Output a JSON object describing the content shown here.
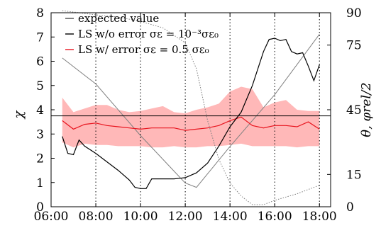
{
  "chart_data": {
    "type": "line",
    "xlabel": "",
    "ylabel_left": "χ",
    "ylabel_right": "θ, φrel/2",
    "x_ticks": [
      "06:00",
      "08:00",
      "10:00",
      "12:00",
      "14:00",
      "16:00",
      "18:00"
    ],
    "x_tick_hours": [
      6,
      8,
      10,
      12,
      14,
      16,
      18
    ],
    "xlim": [
      6,
      18.5
    ],
    "ylim_left": [
      0,
      8
    ],
    "yticks_left": [
      "0",
      "1",
      "2",
      "3",
      "4",
      "5",
      "6",
      "7",
      "8"
    ],
    "ylim_right": [
      0,
      90
    ],
    "yticks_right": [
      "0",
      "15",
      "45",
      "75",
      "90"
    ],
    "yticks_right_values": [
      0,
      15,
      45,
      75,
      90
    ],
    "vertical_gridlines_hours": [
      8,
      10,
      12,
      14,
      16,
      18
    ],
    "legend_position": "top-left",
    "colors": {
      "expected": "#000000",
      "ls_without_error": "#000000",
      "ls_with_error": "#e8141e",
      "error_band": "#ffb8b8",
      "angle_solid": "#808080",
      "angle_dotted": "#808080"
    },
    "legend": [
      {
        "key": "expected",
        "label": "expected value"
      },
      {
        "key": "ls_without_error",
        "label": "LS w/o error σε = 10⁻³σε₀"
      },
      {
        "key": "ls_with_error",
        "label": "LS w/ error σε = 0.5 σε₀"
      }
    ],
    "series": [
      {
        "name": "expected value",
        "axis": "left",
        "style": "thin",
        "x": [
          6,
          18.5
        ],
        "y": [
          3.75,
          3.75
        ]
      },
      {
        "name": "LS w/o error σε = 10⁻³σε₀",
        "axis": "left",
        "style": "solid",
        "x": [
          6.5,
          6.75,
          7.0,
          7.25,
          7.5,
          8.0,
          8.5,
          9.0,
          9.5,
          9.75,
          10.0,
          10.25,
          10.5,
          11.0,
          11.5,
          12.0,
          12.5,
          13.0,
          13.5,
          14.0,
          14.5,
          15.0,
          15.5,
          15.75,
          16.0,
          16.25,
          16.5,
          16.75,
          17.0,
          17.25,
          17.5,
          17.75,
          18.0
        ],
        "y": [
          2.9,
          2.2,
          2.15,
          2.75,
          2.5,
          2.2,
          1.85,
          1.5,
          1.1,
          0.8,
          0.75,
          0.75,
          1.15,
          1.15,
          1.15,
          1.2,
          1.4,
          1.8,
          2.5,
          3.3,
          3.9,
          5.0,
          6.4,
          6.9,
          6.95,
          6.85,
          6.9,
          6.4,
          6.3,
          6.35,
          5.8,
          5.2,
          5.85
        ]
      },
      {
        "name": "LS w/ error σε = 0.5 σε₀",
        "axis": "left",
        "style": "solid",
        "x": [
          6.5,
          7.0,
          7.5,
          8.0,
          8.5,
          9.0,
          9.5,
          10.0,
          10.5,
          11.0,
          11.5,
          12.0,
          12.5,
          13.0,
          13.5,
          14.0,
          14.5,
          15.0,
          15.5,
          16.0,
          16.5,
          17.0,
          17.5,
          18.0
        ],
        "y": [
          3.55,
          3.2,
          3.4,
          3.45,
          3.35,
          3.3,
          3.25,
          3.2,
          3.25,
          3.25,
          3.25,
          3.15,
          3.2,
          3.25,
          3.35,
          3.55,
          3.7,
          3.35,
          3.25,
          3.35,
          3.35,
          3.3,
          3.5,
          3.2
        ]
      },
      {
        "name": "error band upper",
        "axis": "left",
        "style": "band-upper",
        "x": [
          6.5,
          7.0,
          7.5,
          8.0,
          8.5,
          9.0,
          9.5,
          10.0,
          10.5,
          11.0,
          11.5,
          12.0,
          12.5,
          13.0,
          13.5,
          14.0,
          14.5,
          15.0,
          15.5,
          16.0,
          16.5,
          17.0,
          17.5,
          18.0
        ],
        "y": [
          4.5,
          3.9,
          4.05,
          4.2,
          4.2,
          4.0,
          3.9,
          3.95,
          4.05,
          4.15,
          3.9,
          3.85,
          4.0,
          4.1,
          4.25,
          4.75,
          4.95,
          4.85,
          4.1,
          4.3,
          4.4,
          4.0,
          3.95,
          3.95
        ]
      },
      {
        "name": "error band lower",
        "axis": "left",
        "style": "band-lower",
        "x": [
          6.5,
          7.0,
          7.5,
          8.0,
          8.5,
          9.0,
          9.5,
          10.0,
          10.5,
          11.0,
          11.5,
          12.0,
          12.5,
          13.0,
          13.5,
          14.0,
          14.5,
          15.0,
          15.5,
          16.0,
          16.5,
          17.0,
          17.5,
          18.0
        ],
        "y": [
          2.65,
          2.45,
          2.6,
          2.55,
          2.55,
          2.5,
          2.5,
          2.5,
          2.45,
          2.45,
          2.5,
          2.45,
          2.45,
          2.5,
          2.5,
          2.55,
          2.6,
          2.5,
          2.5,
          2.5,
          2.5,
          2.45,
          2.5,
          2.5
        ]
      },
      {
        "name": "θ",
        "axis": "right",
        "style": "solid-gray",
        "x": [
          6.5,
          8.0,
          10.0,
          12.0,
          12.5,
          14.0,
          16.0,
          18.0
        ],
        "y": [
          69,
          57,
          33,
          11,
          9,
          28,
          52,
          80
        ]
      },
      {
        "name": "φrel/2",
        "axis": "right",
        "style": "dotted-gray",
        "x": [
          6.5,
          8.0,
          9.0,
          10.0,
          11.0,
          12.0,
          12.5,
          13.0,
          13.5,
          14.0,
          14.5,
          15.0,
          15.5,
          16.0,
          17.0,
          18.0
        ],
        "y": [
          91,
          89,
          88,
          86,
          83,
          76,
          64,
          40,
          22,
          11,
          5,
          1,
          1,
          3,
          6,
          10
        ]
      }
    ]
  }
}
